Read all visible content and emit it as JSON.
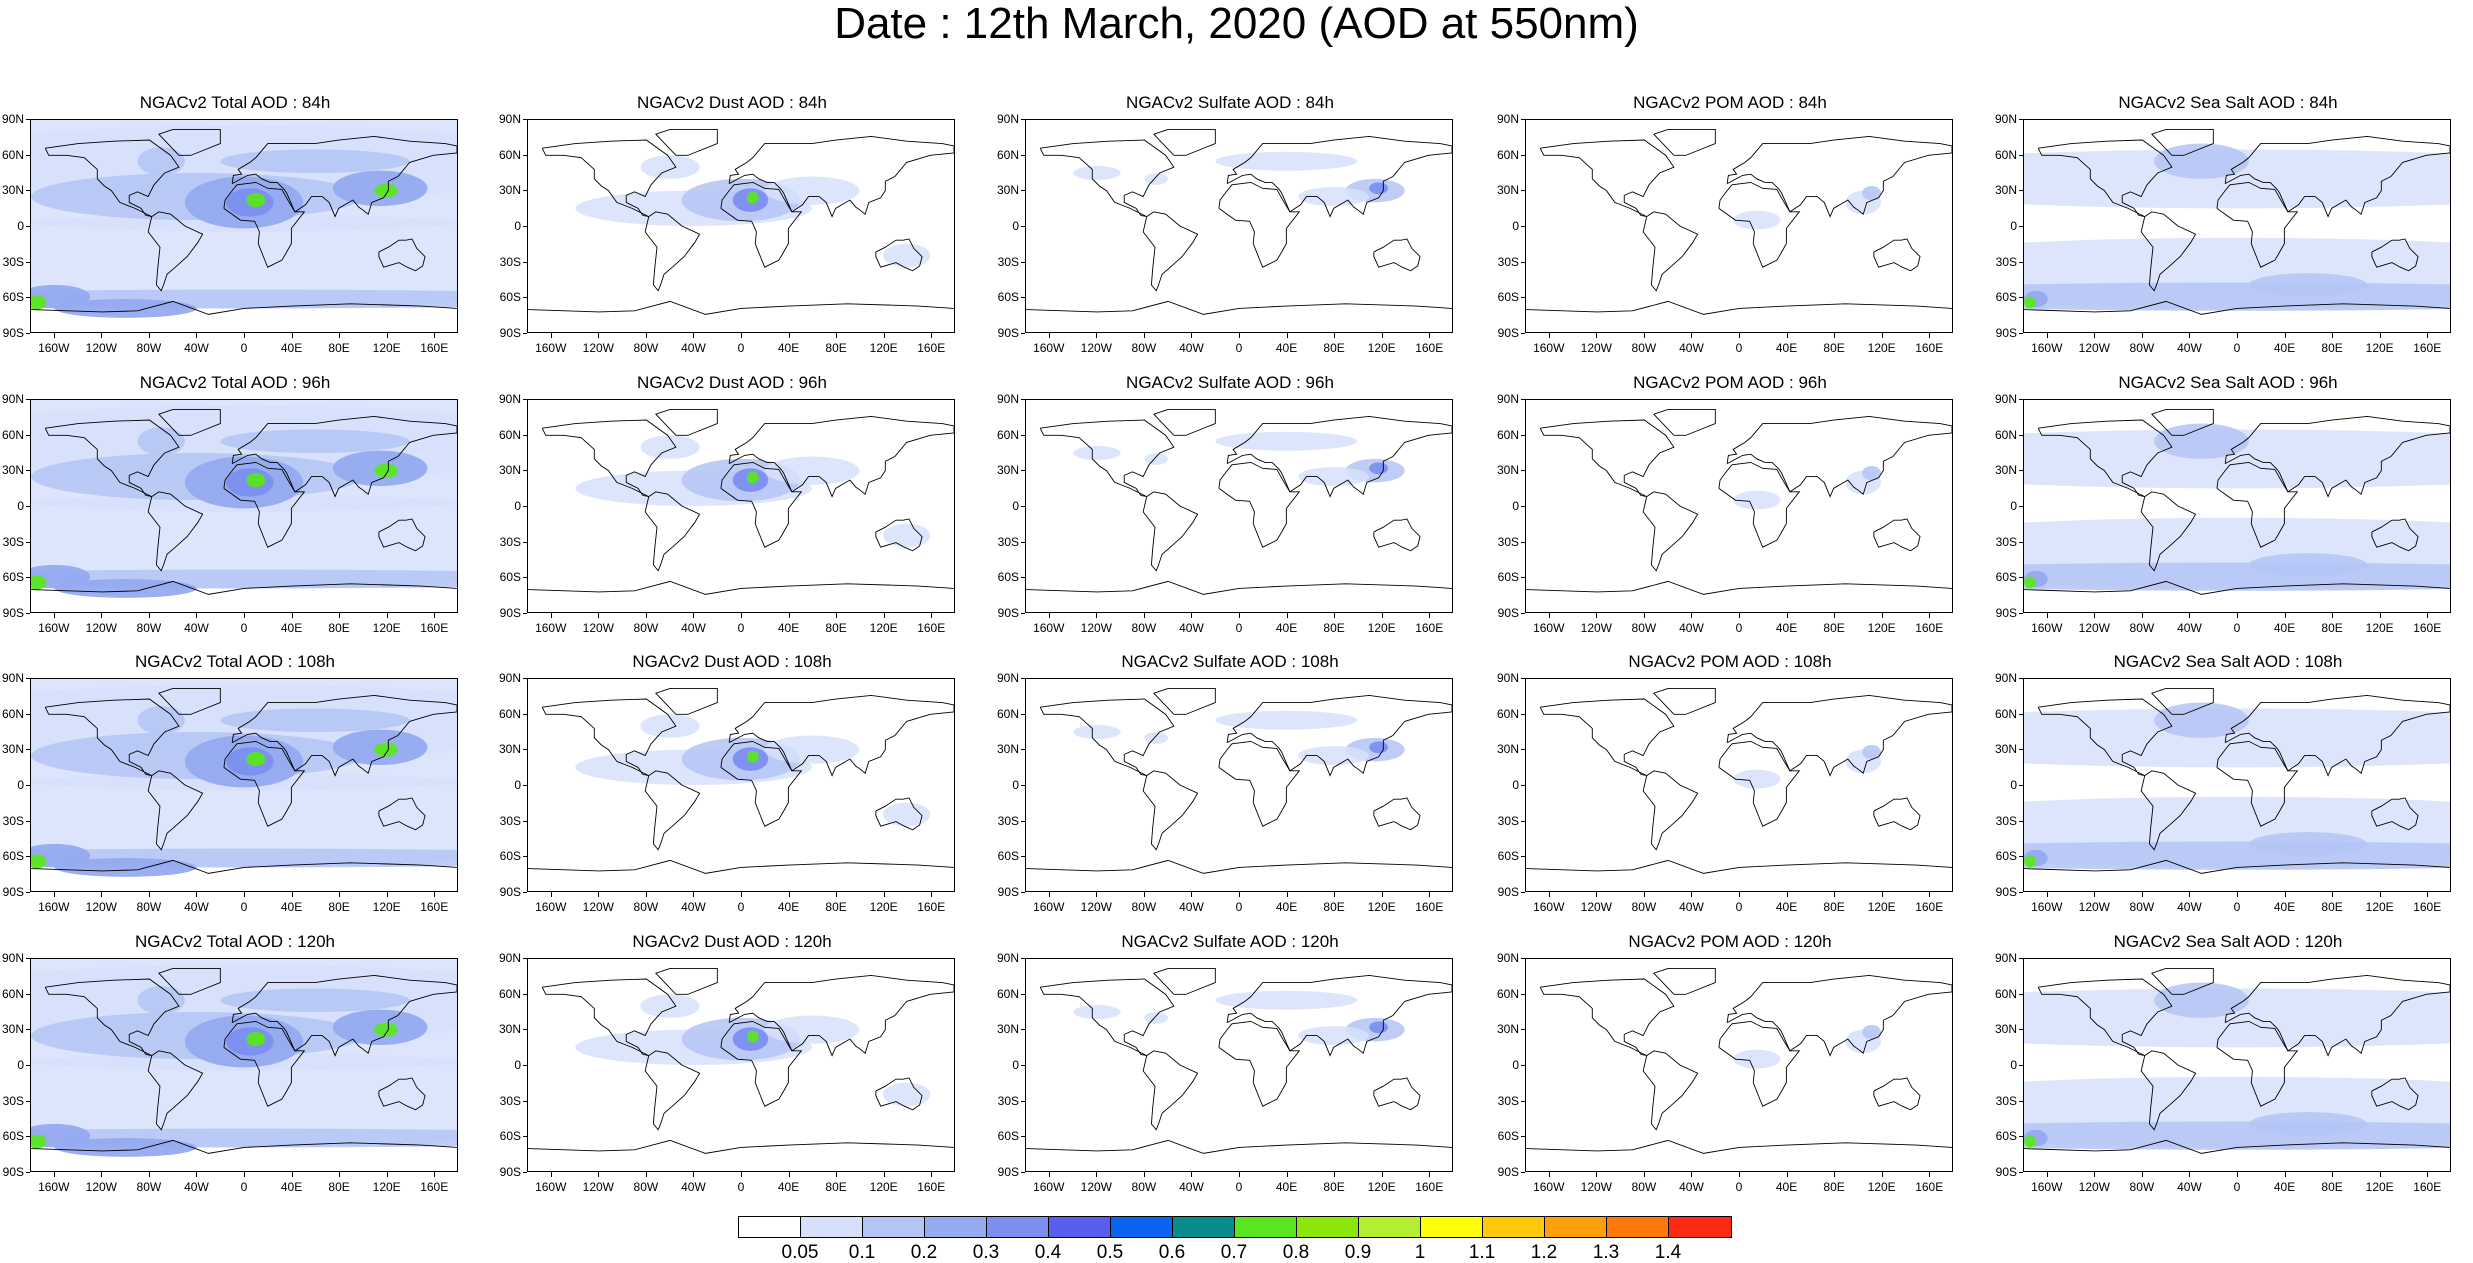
{
  "title": "Date : 12th March, 2020 (AOD at 550nm)",
  "lat_labels": [
    "90N",
    "60N",
    "30N",
    "0",
    "30S",
    "60S",
    "90S"
  ],
  "lon_labels": [
    "160W",
    "120W",
    "80W",
    "40W",
    "0",
    "40E",
    "80E",
    "120E",
    "160E"
  ],
  "panels": [
    {
      "row": 0,
      "col": 0,
      "title": "NGACv2 Total AOD : 84h",
      "species": "total"
    },
    {
      "row": 0,
      "col": 1,
      "title": "NGACv2 Dust AOD : 84h",
      "species": "dust"
    },
    {
      "row": 0,
      "col": 2,
      "title": "NGACv2 Sulfate AOD : 84h",
      "species": "sulfate"
    },
    {
      "row": 0,
      "col": 3,
      "title": "NGACv2 POM AOD : 84h",
      "species": "pom"
    },
    {
      "row": 0,
      "col": 4,
      "title": "NGACv2 Sea Salt AOD : 84h",
      "species": "seasalt"
    },
    {
      "row": 1,
      "col": 0,
      "title": "NGACv2 Total AOD : 96h",
      "species": "total"
    },
    {
      "row": 1,
      "col": 1,
      "title": "NGACv2 Dust AOD : 96h",
      "species": "dust"
    },
    {
      "row": 1,
      "col": 2,
      "title": "NGACv2 Sulfate AOD : 96h",
      "species": "sulfate"
    },
    {
      "row": 1,
      "col": 3,
      "title": "NGACv2 POM AOD : 96h",
      "species": "pom"
    },
    {
      "row": 1,
      "col": 4,
      "title": "NGACv2 Sea Salt AOD : 96h",
      "species": "seasalt"
    },
    {
      "row": 2,
      "col": 0,
      "title": "NGACv2 Total AOD : 108h",
      "species": "total"
    },
    {
      "row": 2,
      "col": 1,
      "title": "NGACv2 Dust AOD : 108h",
      "species": "dust"
    },
    {
      "row": 2,
      "col": 2,
      "title": "NGACv2 Sulfate AOD : 108h",
      "species": "sulfate"
    },
    {
      "row": 2,
      "col": 3,
      "title": "NGACv2 POM AOD : 108h",
      "species": "pom"
    },
    {
      "row": 2,
      "col": 4,
      "title": "NGACv2 Sea Salt AOD : 108h",
      "species": "seasalt"
    },
    {
      "row": 3,
      "col": 0,
      "title": "NGACv2 Total AOD : 120h",
      "species": "total"
    },
    {
      "row": 3,
      "col": 1,
      "title": "NGACv2 Dust AOD : 120h",
      "species": "dust"
    },
    {
      "row": 3,
      "col": 2,
      "title": "NGACv2 Sulfate AOD : 120h",
      "species": "sulfate"
    },
    {
      "row": 3,
      "col": 3,
      "title": "NGACv2 POM AOD : 120h",
      "species": "pom"
    },
    {
      "row": 3,
      "col": 4,
      "title": "NGACv2 Sea Salt  AOD : 120h",
      "species": "seasalt"
    }
  ],
  "colorbar": {
    "colors": [
      "#ffffff",
      "#d6e0fb",
      "#b4c4f5",
      "#95aaf0",
      "#7b8ff0",
      "#5a5ef0",
      "#0a64f0",
      "#0a8c8c",
      "#5ae61e",
      "#8ce60a",
      "#b4ee32",
      "#ffff0a",
      "#ffc80a",
      "#ffa00a",
      "#ff780a",
      "#ff2a14"
    ],
    "labels": [
      "0.05",
      "0.1",
      "0.2",
      "0.3",
      "0.4",
      "0.5",
      "0.6",
      "0.7",
      "0.8",
      "0.9",
      "1",
      "1.1",
      "1.2",
      "1.3",
      "1.4"
    ]
  }
}
